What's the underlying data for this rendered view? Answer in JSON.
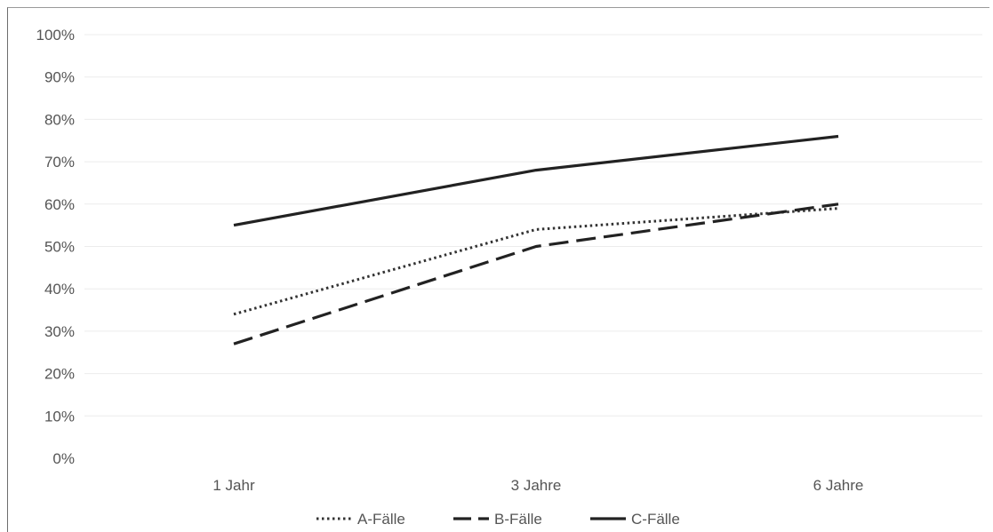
{
  "chart_data": {
    "type": "line",
    "categories": [
      "1 Jahr",
      "3 Jahre",
      "6 Jahre"
    ],
    "series": [
      {
        "name": "A-Fälle",
        "values": [
          34,
          54,
          59
        ],
        "style": "dotted",
        "color": "#333333"
      },
      {
        "name": "B-Fälle",
        "values": [
          27,
          50,
          60
        ],
        "style": "dashed",
        "color": "#222222"
      },
      {
        "name": "C-Fälle",
        "values": [
          55,
          68,
          76
        ],
        "style": "solid",
        "color": "#222222"
      }
    ],
    "y_ticks": [
      "0%",
      "10%",
      "20%",
      "30%",
      "40%",
      "50%",
      "60%",
      "70%",
      "80%",
      "90%",
      "100%"
    ],
    "ylim": [
      0,
      100
    ],
    "grid": true,
    "legend_position": "bottom"
  }
}
